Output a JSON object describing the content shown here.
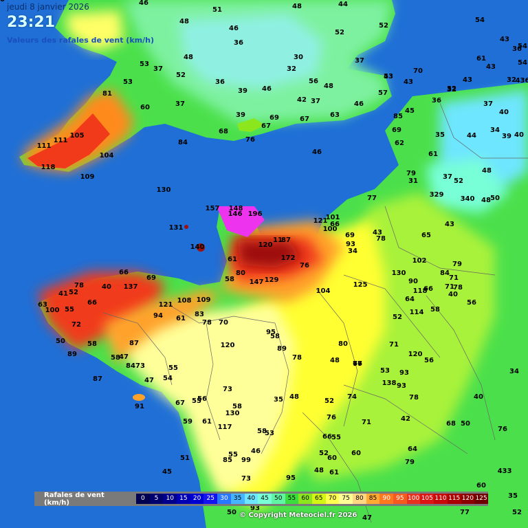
{
  "header": {
    "date": "jeudi 8 janvier 2026",
    "time": "23:21",
    "subtitle": "Valeurs des rafales de vent (km/h)"
  },
  "colors": {
    "sea": "#1f6fd6",
    "land_green": "#4be04b",
    "land_lightgreen": "#a9f23a",
    "land_yellow": "#ffff33",
    "land_paleyellow": "#ffff99",
    "land_orange": "#ffa22a",
    "land_red": "#f03a1a",
    "land_darkred": "#9c1010",
    "land_magenta": "#ee33ee",
    "coast_cyan": "#7ef1e1"
  },
  "map_labels": [
    {
      "v": "46",
      "name": "lbl-46-a"
    },
    {
      "v": "51",
      "name": "lbl-51-a"
    },
    {
      "v": "48",
      "name": "lbl-48-a"
    },
    {
      "v": "44",
      "name": "lbl-44-a"
    },
    {
      "v": "48",
      "name": "lbl-48-b"
    },
    {
      "v": "46",
      "name": "lbl-46-b"
    },
    {
      "v": "52",
      "name": "lbl-52-a"
    },
    {
      "v": "52",
      "name": "lbl-52-b"
    },
    {
      "v": "54",
      "name": "lbl-54-a"
    },
    {
      "v": "36",
      "name": "lbl-36-a"
    },
    {
      "v": "43",
      "name": "lbl-43-a"
    },
    {
      "v": "54",
      "name": "lbl-54-b"
    },
    {
      "v": "36",
      "name": "lbl-36-b"
    },
    {
      "v": "53",
      "name": "lbl-53-a"
    },
    {
      "v": "37",
      "name": "lbl-37-a"
    },
    {
      "v": "48",
      "name": "lbl-48-c"
    },
    {
      "v": "30",
      "name": "lbl-30-a"
    },
    {
      "v": "37",
      "name": "lbl-37-b"
    },
    {
      "v": "61",
      "name": "lbl-61-a"
    },
    {
      "v": "43",
      "name": "lbl-43-b"
    },
    {
      "v": "54",
      "name": "lbl-54-c"
    },
    {
      "v": "436",
      "name": "lbl-436-a"
    },
    {
      "v": "53",
      "name": "lbl-53-b"
    },
    {
      "v": "52",
      "name": "lbl-52-c"
    },
    {
      "v": "32",
      "name": "lbl-32-a"
    },
    {
      "v": "70",
      "name": "lbl-70-a"
    },
    {
      "v": "53",
      "name": "lbl-53-c"
    },
    {
      "v": "43",
      "name": "lbl-43-c"
    },
    {
      "v": "32",
      "name": "lbl-32-b"
    },
    {
      "v": "36",
      "name": "lbl-36-c"
    },
    {
      "v": "39",
      "name": "lbl-39-a"
    },
    {
      "v": "46",
      "name": "lbl-46-c"
    },
    {
      "v": "56",
      "name": "lbl-56-a"
    },
    {
      "v": "48",
      "name": "lbl-48-d"
    },
    {
      "v": "43",
      "name": "lbl-43-d"
    },
    {
      "v": "52",
      "name": "lbl-52-d"
    },
    {
      "v": "32",
      "name": "lbl-32-c"
    },
    {
      "v": "43",
      "name": "lbl-43-e"
    },
    {
      "v": "81",
      "name": "lbl-81-a"
    },
    {
      "v": "37",
      "name": "lbl-37-c"
    },
    {
      "v": "42",
      "name": "lbl-42-a"
    },
    {
      "v": "37",
      "name": "lbl-37-d"
    },
    {
      "v": "46",
      "name": "lbl-46-d"
    },
    {
      "v": "57",
      "name": "lbl-57-a"
    },
    {
      "v": "60",
      "name": "lbl-60-a"
    },
    {
      "v": "39",
      "name": "lbl-39-b"
    },
    {
      "v": "69",
      "name": "lbl-69-a"
    },
    {
      "v": "67",
      "name": "lbl-67-a"
    },
    {
      "v": "63",
      "name": "lbl-63-a"
    },
    {
      "v": "85",
      "name": "lbl-85-a"
    },
    {
      "v": "45",
      "name": "lbl-45-a"
    },
    {
      "v": "36",
      "name": "lbl-36-d"
    },
    {
      "v": "37",
      "name": "lbl-37-e"
    },
    {
      "v": "40",
      "name": "lbl-40-a"
    },
    {
      "v": "67",
      "name": "lbl-67-b"
    },
    {
      "v": "68",
      "name": "lbl-68-a"
    },
    {
      "v": "69",
      "name": "lbl-69-b"
    },
    {
      "v": "35",
      "name": "lbl-35-a"
    },
    {
      "v": "34",
      "name": "lbl-34-a"
    },
    {
      "v": "105",
      "name": "lbl-105-a"
    },
    {
      "v": "76",
      "name": "lbl-76-a"
    },
    {
      "v": "44",
      "name": "lbl-44-b"
    },
    {
      "v": "39",
      "name": "lbl-39-c"
    },
    {
      "v": "40",
      "name": "lbl-40-b"
    },
    {
      "v": "111",
      "name": "lbl-111-a"
    },
    {
      "v": "111",
      "name": "lbl-111-b"
    },
    {
      "v": "84",
      "name": "lbl-84-a"
    },
    {
      "v": "62",
      "name": "lbl-62-a"
    },
    {
      "v": "104",
      "name": "lbl-104-a"
    },
    {
      "v": "46",
      "name": "lbl-46-e"
    },
    {
      "v": "61",
      "name": "lbl-61-b"
    },
    {
      "v": "118",
      "name": "lbl-118-a"
    },
    {
      "v": "79",
      "name": "lbl-79-a"
    },
    {
      "v": "48",
      "name": "lbl-48-e"
    },
    {
      "v": "109",
      "name": "lbl-109-a"
    },
    {
      "v": "31",
      "name": "lbl-31-a"
    },
    {
      "v": "37",
      "name": "lbl-37-f"
    },
    {
      "v": "52",
      "name": "lbl-52-e"
    },
    {
      "v": "130",
      "name": "lbl-130-a"
    },
    {
      "v": "329",
      "name": "lbl-329-a"
    },
    {
      "v": "77",
      "name": "lbl-77-a"
    },
    {
      "v": "340",
      "name": "lbl-340-a"
    },
    {
      "v": "48",
      "name": "lbl-48-f"
    },
    {
      "v": "50",
      "name": "lbl-50-a"
    },
    {
      "v": "157",
      "name": "lbl-157-a"
    },
    {
      "v": "148",
      "name": "lbl-148-a"
    },
    {
      "v": "146",
      "name": "lbl-146-a"
    },
    {
      "v": "196",
      "name": "lbl-196-a"
    },
    {
      "v": "101",
      "name": "lbl-101-a"
    },
    {
      "v": "121",
      "name": "lbl-121-a"
    },
    {
      "v": "66",
      "name": "lbl-66-a"
    },
    {
      "v": "43",
      "name": "lbl-43-f"
    },
    {
      "v": "131",
      "name": "lbl-131-a"
    },
    {
      "v": "100",
      "name": "lbl-100-a"
    },
    {
      "v": "69",
      "name": "lbl-69-c"
    },
    {
      "v": "43",
      "name": "lbl-43-g"
    },
    {
      "v": "78",
      "name": "lbl-78-a"
    },
    {
      "v": "65",
      "name": "lbl-65-a"
    },
    {
      "v": "11",
      "name": "lbl-11-a"
    },
    {
      "v": "87",
      "name": "lbl-87-a"
    },
    {
      "v": "140",
      "name": "lbl-140-a"
    },
    {
      "v": "120",
      "name": "lbl-120-a"
    },
    {
      "v": "93",
      "name": "lbl-93-a"
    },
    {
      "v": "34",
      "name": "lbl-34-b"
    },
    {
      "v": "61",
      "name": "lbl-61-c"
    },
    {
      "v": "172",
      "name": "lbl-172-a"
    },
    {
      "v": "102",
      "name": "lbl-102-a"
    },
    {
      "v": "76",
      "name": "lbl-76-b"
    },
    {
      "v": "79",
      "name": "lbl-79-b"
    },
    {
      "v": "66",
      "name": "lbl-66-b"
    },
    {
      "v": "80",
      "name": "lbl-80-a"
    },
    {
      "v": "130",
      "name": "lbl-130-b"
    },
    {
      "v": "84",
      "name": "lbl-84-b"
    },
    {
      "v": "71",
      "name": "lbl-71-a"
    },
    {
      "v": "69",
      "name": "lbl-69-d"
    },
    {
      "v": "58",
      "name": "lbl-58-a"
    },
    {
      "v": "147",
      "name": "lbl-147-a"
    },
    {
      "v": "129",
      "name": "lbl-129-a"
    },
    {
      "v": "90",
      "name": "lbl-90-a"
    },
    {
      "v": "66",
      "name": "lbl-66-c"
    },
    {
      "v": "71",
      "name": "lbl-71-b"
    },
    {
      "v": "78",
      "name": "lbl-78-b"
    },
    {
      "v": "78",
      "name": "lbl-78-c"
    },
    {
      "v": "40",
      "name": "lbl-40-c"
    },
    {
      "v": "137",
      "name": "lbl-137-a"
    },
    {
      "v": "125",
      "name": "lbl-125-a"
    },
    {
      "v": "118",
      "name": "lbl-118-b"
    },
    {
      "v": "40",
      "name": "lbl-40-d"
    },
    {
      "v": "41",
      "name": "lbl-41-a"
    },
    {
      "v": "52",
      "name": "lbl-52-f"
    },
    {
      "v": "104",
      "name": "lbl-104-b"
    },
    {
      "v": "64",
      "name": "lbl-64-a"
    },
    {
      "v": "56",
      "name": "lbl-56-b"
    },
    {
      "v": "63",
      "name": "lbl-63-b"
    },
    {
      "v": "66",
      "name": "lbl-66-d"
    },
    {
      "v": "121",
      "name": "lbl-121-b"
    },
    {
      "v": "108",
      "name": "lbl-108-a"
    },
    {
      "v": "109",
      "name": "lbl-109-b"
    },
    {
      "v": "58",
      "name": "lbl-58-b"
    },
    {
      "v": "100",
      "name": "lbl-100-b"
    },
    {
      "v": "55",
      "name": "lbl-55-a"
    },
    {
      "v": "114",
      "name": "lbl-114-a"
    },
    {
      "v": "94",
      "name": "lbl-94-a"
    },
    {
      "v": "61",
      "name": "lbl-61-d"
    },
    {
      "v": "83",
      "name": "lbl-83-a"
    },
    {
      "v": "52",
      "name": "lbl-52-g"
    },
    {
      "v": "72",
      "name": "lbl-72-a"
    },
    {
      "v": "78",
      "name": "lbl-78-d"
    },
    {
      "v": "70",
      "name": "lbl-70-b"
    },
    {
      "v": "95",
      "name": "lbl-95-a"
    },
    {
      "v": "58",
      "name": "lbl-58-c"
    },
    {
      "v": "50",
      "name": "lbl-50-b"
    },
    {
      "v": "58",
      "name": "lbl-58-d"
    },
    {
      "v": "87",
      "name": "lbl-87-b"
    },
    {
      "v": "120",
      "name": "lbl-120-b"
    },
    {
      "v": "80",
      "name": "lbl-80-b"
    },
    {
      "v": "71",
      "name": "lbl-71-c"
    },
    {
      "v": "89",
      "name": "lbl-89-a"
    },
    {
      "v": "47",
      "name": "lbl-47-a"
    },
    {
      "v": "89",
      "name": "lbl-89-b"
    },
    {
      "v": "120",
      "name": "lbl-120-c"
    },
    {
      "v": "58",
      "name": "lbl-58-e"
    },
    {
      "v": "73",
      "name": "lbl-73-a"
    },
    {
      "v": "78",
      "name": "lbl-78-e"
    },
    {
      "v": "48",
      "name": "lbl-48-g"
    },
    {
      "v": "66",
      "name": "lbl-66-e"
    },
    {
      "v": "56",
      "name": "lbl-56-c"
    },
    {
      "v": "84",
      "name": "lbl-84-c"
    },
    {
      "v": "55",
      "name": "lbl-55-b"
    },
    {
      "v": "53",
      "name": "lbl-53-d"
    },
    {
      "v": "93",
      "name": "lbl-93-b"
    },
    {
      "v": "34",
      "name": "lbl-34-c"
    },
    {
      "v": "87",
      "name": "lbl-87-c"
    },
    {
      "v": "47",
      "name": "lbl-47-b"
    },
    {
      "v": "54",
      "name": "lbl-54-d"
    },
    {
      "v": "138",
      "name": "lbl-138-a"
    },
    {
      "v": "93",
      "name": "lbl-93-c"
    },
    {
      "v": "73",
      "name": "lbl-73-b"
    },
    {
      "v": "35",
      "name": "lbl-35-b"
    },
    {
      "v": "48",
      "name": "lbl-48-h"
    },
    {
      "v": "52",
      "name": "lbl-52-h"
    },
    {
      "v": "74",
      "name": "lbl-74-a"
    },
    {
      "v": "78",
      "name": "lbl-78-f"
    },
    {
      "v": "40",
      "name": "lbl-40-e"
    },
    {
      "v": "77",
      "name": "lbl-77-b"
    },
    {
      "v": "67",
      "name": "lbl-67-c"
    },
    {
      "v": "55",
      "name": "lbl-55-c"
    },
    {
      "v": "56",
      "name": "lbl-56-d"
    },
    {
      "v": "91",
      "name": "lbl-91-a"
    },
    {
      "v": "58",
      "name": "lbl-58-f"
    },
    {
      "v": "130",
      "name": "lbl-130-c"
    },
    {
      "v": "76",
      "name": "lbl-76-c"
    },
    {
      "v": "71",
      "name": "lbl-71-d"
    },
    {
      "v": "42",
      "name": "lbl-42-b"
    },
    {
      "v": "68",
      "name": "lbl-68-b"
    },
    {
      "v": "50",
      "name": "lbl-50-c"
    },
    {
      "v": "59",
      "name": "lbl-59-a"
    },
    {
      "v": "61",
      "name": "lbl-61-e"
    },
    {
      "v": "117",
      "name": "lbl-117-a"
    },
    {
      "v": "58",
      "name": "lbl-58-g"
    },
    {
      "v": "53",
      "name": "lbl-53-e"
    },
    {
      "v": "66",
      "name": "lbl-66-f"
    },
    {
      "v": "55",
      "name": "lbl-55-d"
    },
    {
      "v": "76",
      "name": "lbl-76-d"
    },
    {
      "v": "55",
      "name": "lbl-55-e"
    },
    {
      "v": "46",
      "name": "lbl-46-f"
    },
    {
      "v": "52",
      "name": "lbl-52-i"
    },
    {
      "v": "60",
      "name": "lbl-60-b"
    },
    {
      "v": "64",
      "name": "lbl-64-b"
    },
    {
      "v": "51",
      "name": "lbl-51-b"
    },
    {
      "v": "85",
      "name": "lbl-85-b"
    },
    {
      "v": "99",
      "name": "lbl-99-a"
    },
    {
      "v": "60",
      "name": "lbl-60-c"
    },
    {
      "v": "79",
      "name": "lbl-79-c"
    },
    {
      "v": "45",
      "name": "lbl-45-b"
    },
    {
      "v": "48",
      "name": "lbl-48-i"
    },
    {
      "v": "61",
      "name": "lbl-61-f"
    },
    {
      "v": "73",
      "name": "lbl-73-c"
    },
    {
      "v": "95",
      "name": "lbl-95-b"
    },
    {
      "v": "60",
      "name": "lbl-60-d"
    },
    {
      "v": "433",
      "name": "lbl-433-a"
    },
    {
      "v": "35",
      "name": "lbl-35-c"
    },
    {
      "v": "50",
      "name": "lbl-50-d"
    },
    {
      "v": "93",
      "name": "lbl-93-d"
    },
    {
      "v": "77",
      "name": "lbl-77-c"
    },
    {
      "v": "47",
      "name": "lbl-47-c"
    },
    {
      "v": "52",
      "name": "lbl-52-j"
    },
    {
      "v": "40",
      "name": "lbl-40-f"
    }
  ],
  "legend": {
    "title": "Rafales de vent (km/h)",
    "items": [
      {
        "label": "0",
        "color": "#000050",
        "text": "#ffffff"
      },
      {
        "label": "5",
        "color": "#00006e",
        "text": "#ffffff"
      },
      {
        "label": "10",
        "color": "#00008c",
        "text": "#ffffff"
      },
      {
        "label": "15",
        "color": "#0000b4",
        "text": "#ffffff"
      },
      {
        "label": "20",
        "color": "#0000d2",
        "text": "#ffffff"
      },
      {
        "label": "25",
        "color": "#1414f0",
        "text": "#ffffff"
      },
      {
        "label": "30",
        "color": "#2877ff",
        "text": "#ffffff"
      },
      {
        "label": "35",
        "color": "#46b4ff",
        "text": "#000000"
      },
      {
        "label": "40",
        "color": "#6ee6ff",
        "text": "#000000"
      },
      {
        "label": "45",
        "color": "#78ffd7",
        "text": "#000000"
      },
      {
        "label": "50",
        "color": "#5ff5a5",
        "text": "#000000"
      },
      {
        "label": "55",
        "color": "#3cdc3c",
        "text": "#000000"
      },
      {
        "label": "60",
        "color": "#8ce61e",
        "text": "#000000"
      },
      {
        "label": "65",
        "color": "#d2f514",
        "text": "#000000"
      },
      {
        "label": "70",
        "color": "#ffff50",
        "text": "#000000"
      },
      {
        "label": "75",
        "color": "#ffff96",
        "text": "#000000"
      },
      {
        "label": "80",
        "color": "#ffd782",
        "text": "#000000"
      },
      {
        "label": "85",
        "color": "#ffaa32",
        "text": "#000000"
      },
      {
        "label": "90",
        "color": "#ff781e",
        "text": "#ffffff"
      },
      {
        "label": "95",
        "color": "#f55a1e",
        "text": "#ffffff"
      },
      {
        "label": "100",
        "color": "#e6321e",
        "text": "#ffffff"
      },
      {
        "label": "105",
        "color": "#dc1414",
        "text": "#ffffff"
      },
      {
        "label": "110",
        "color": "#c80a0a",
        "text": "#ffffff"
      },
      {
        "label": "115",
        "color": "#aa0000",
        "text": "#ffffff"
      },
      {
        "label": "120",
        "color": "#8c0000",
        "text": "#ffffff"
      },
      {
        "label": "125",
        "color": "#6e0000",
        "text": "#ffffff"
      }
    ]
  },
  "copyright": "© Copyright Meteociel.fr 2026"
}
